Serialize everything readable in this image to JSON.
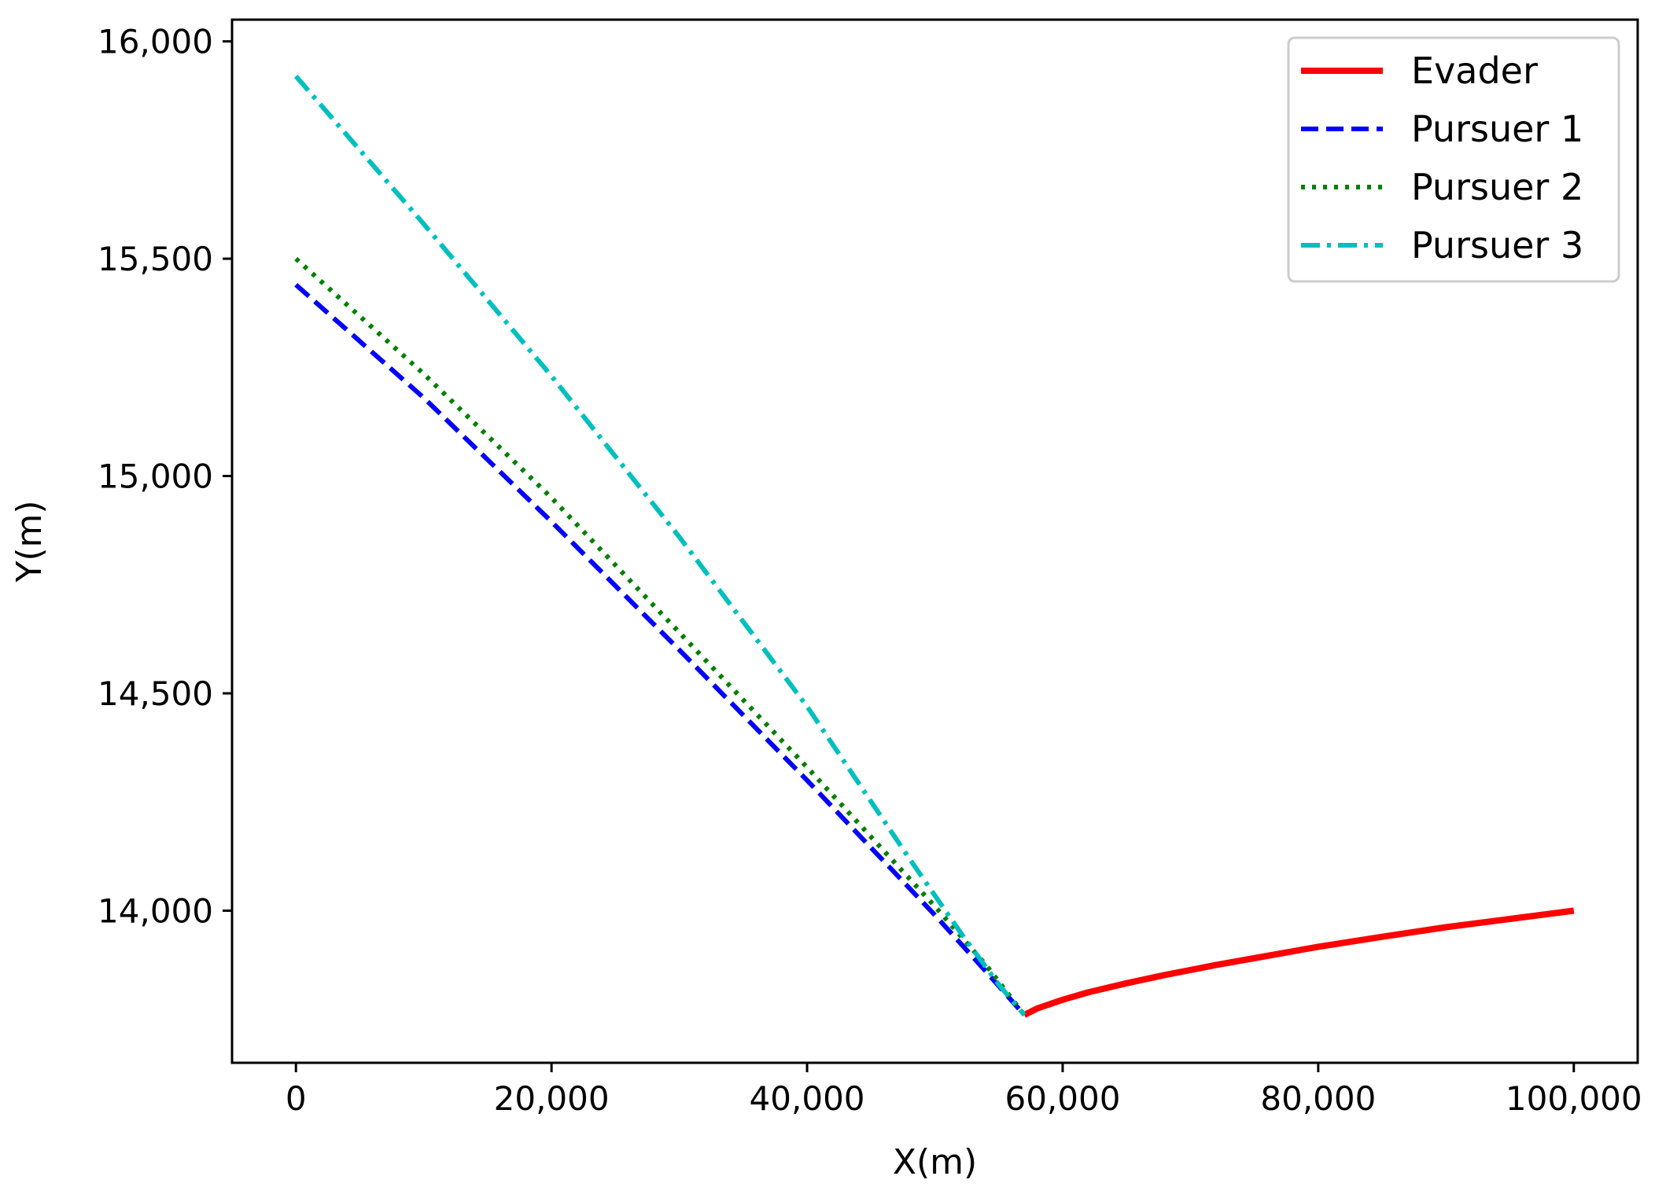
{
  "chart_data": {
    "type": "line",
    "title": "",
    "xlabel": "X(m)",
    "ylabel": "Y(m)",
    "xlim": [
      -5000,
      105000
    ],
    "ylim": [
      13650,
      16050
    ],
    "xticks": [
      0,
      20000,
      40000,
      60000,
      80000,
      100000
    ],
    "xtick_labels": [
      "0",
      "20,000",
      "40,000",
      "60,000",
      "80,000",
      "100,000"
    ],
    "yticks": [
      14000,
      14500,
      15000,
      15500,
      16000
    ],
    "ytick_labels": [
      "14,000",
      "14,500",
      "15,000",
      "15,500",
      "16,000"
    ],
    "grid": false,
    "legend_position": "top-right",
    "series": [
      {
        "name": "Evader",
        "color": "#ff0000",
        "style": "solid",
        "points": [
          [
            57000,
            13760
          ],
          [
            58000,
            13775
          ],
          [
            60000,
            13795
          ],
          [
            62000,
            13812
          ],
          [
            65000,
            13833
          ],
          [
            68000,
            13852
          ],
          [
            72000,
            13875
          ],
          [
            76000,
            13896
          ],
          [
            80000,
            13917
          ],
          [
            85000,
            13940
          ],
          [
            90000,
            13962
          ],
          [
            95000,
            13981
          ],
          [
            100000,
            14000
          ]
        ]
      },
      {
        "name": "Pursuer 1",
        "color": "#0000ff",
        "style": "dashed",
        "points": [
          [
            0,
            15440
          ],
          [
            10000,
            15180
          ],
          [
            20000,
            14895
          ],
          [
            30000,
            14600
          ],
          [
            40000,
            14300
          ],
          [
            50000,
            13990
          ],
          [
            54000,
            13860
          ],
          [
            57000,
            13760
          ]
        ]
      },
      {
        "name": "Pursuer 2",
        "color": "#008000",
        "style": "dotted",
        "points": [
          [
            0,
            15500
          ],
          [
            10000,
            15235
          ],
          [
            20000,
            14950
          ],
          [
            30000,
            14640
          ],
          [
            40000,
            14330
          ],
          [
            50000,
            14010
          ],
          [
            54000,
            13875
          ],
          [
            57000,
            13760
          ]
        ]
      },
      {
        "name": "Pursuer 3",
        "color": "#00bfbf",
        "style": "dashdot",
        "points": [
          [
            0,
            15920
          ],
          [
            10000,
            15580
          ],
          [
            20000,
            15230
          ],
          [
            30000,
            14860
          ],
          [
            40000,
            14470
          ],
          [
            48000,
            14120
          ],
          [
            52000,
            13950
          ],
          [
            55000,
            13830
          ],
          [
            57000,
            13760
          ]
        ]
      }
    ]
  }
}
